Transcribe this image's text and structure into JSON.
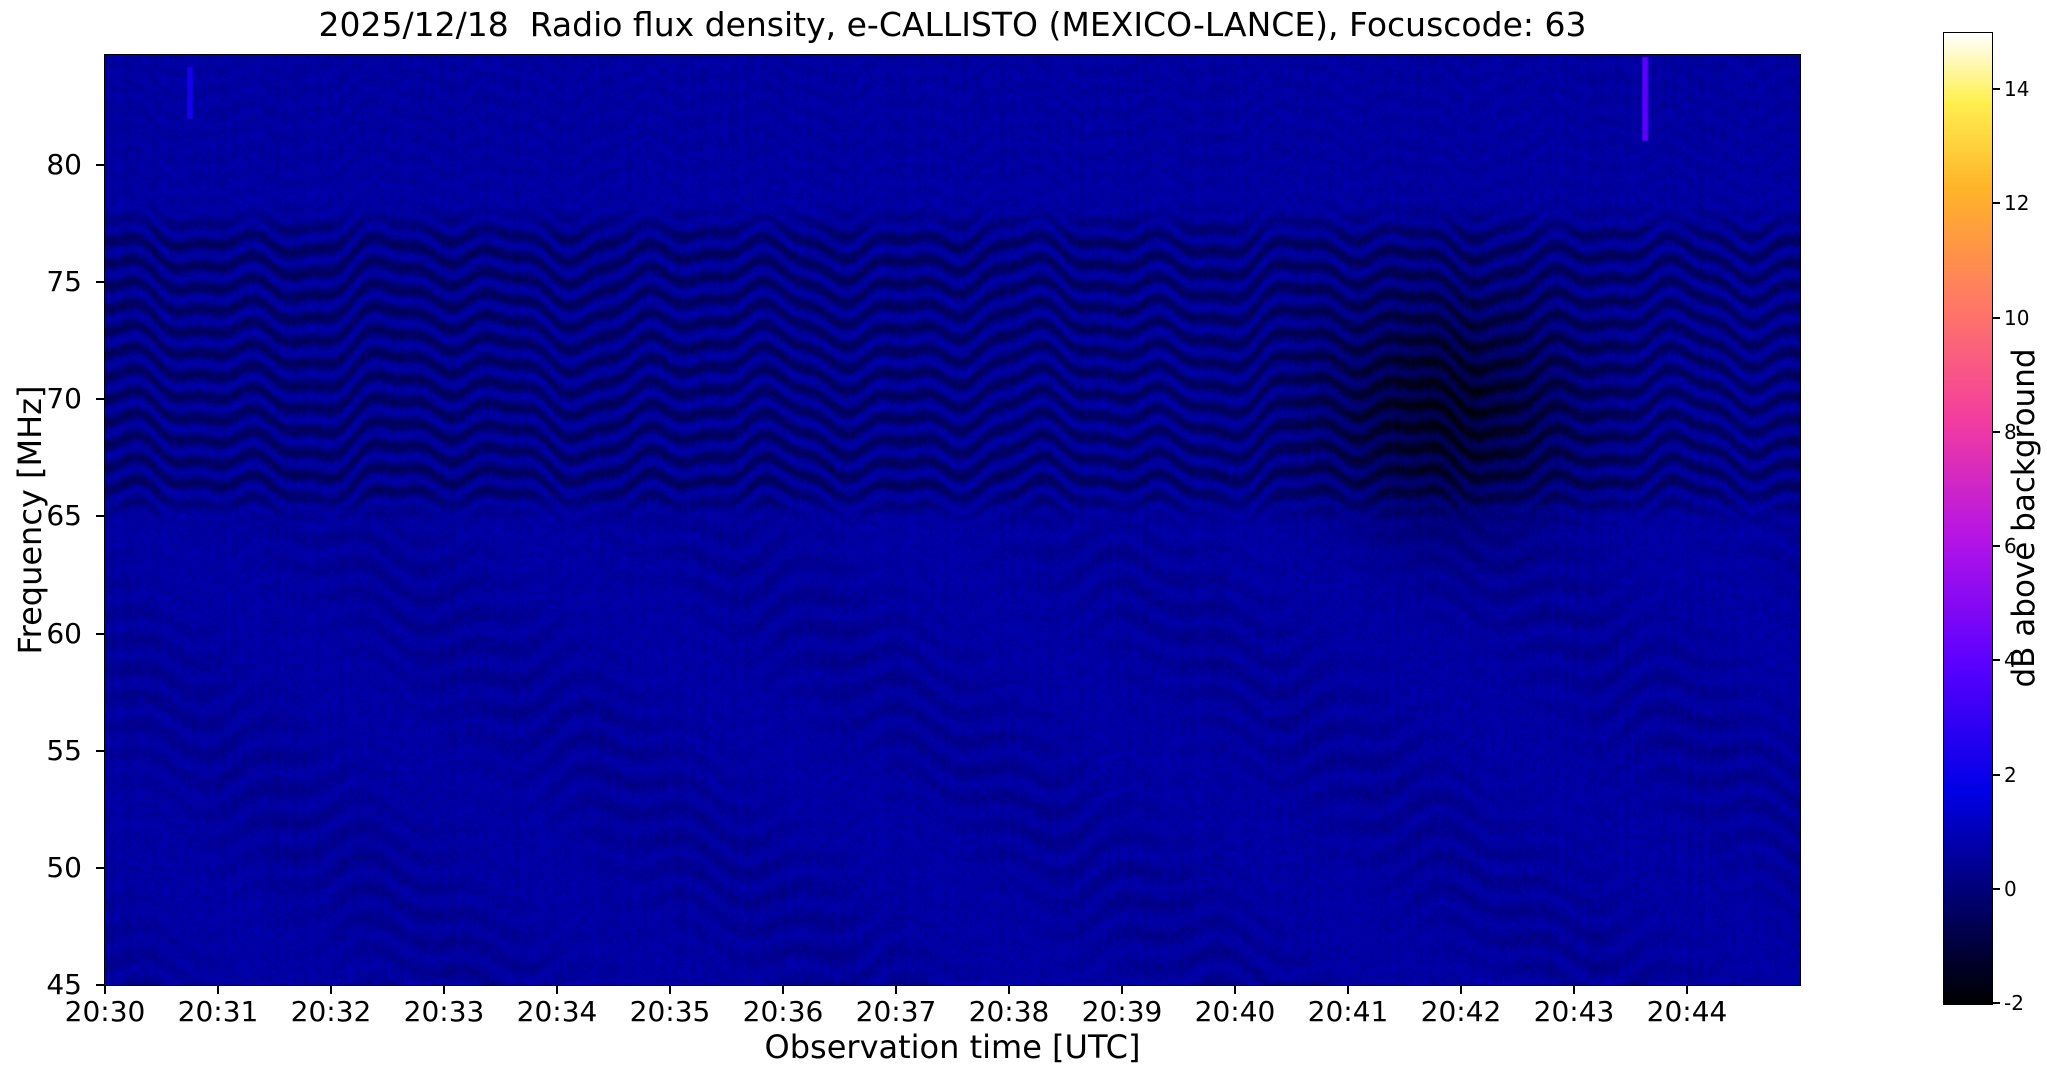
{
  "chart_data": {
    "type": "heatmap",
    "title": "2025/12/18  Radio flux density, e-CALLISTO (MEXICO-LANCE), Focuscode: 63",
    "xlabel": "Observation time [UTC]",
    "ylabel": "Frequency [MHz]",
    "colorbar_label": "dB above background",
    "x_ticks": [
      "20:30",
      "20:31",
      "20:32",
      "20:33",
      "20:34",
      "20:35",
      "20:36",
      "20:37",
      "20:38",
      "20:39",
      "20:40",
      "20:41",
      "20:42",
      "20:43",
      "20:44"
    ],
    "y_ticks": [
      "45",
      "50",
      "55",
      "60",
      "65",
      "70",
      "75",
      "80"
    ],
    "y_tick_values": [
      45,
      50,
      55,
      60,
      65,
      70,
      75,
      80
    ],
    "colorbar_ticks": [
      "-2",
      "0",
      "2",
      "4",
      "6",
      "8",
      "10",
      "12",
      "14"
    ],
    "colorbar_tick_values": [
      -2,
      0,
      2,
      4,
      6,
      8,
      10,
      12,
      14
    ],
    "x_range_minutes": [
      0,
      15
    ],
    "time_start": "20:30",
    "freq_range_mhz": [
      45,
      84.7
    ],
    "value_range_db": [
      -2,
      15
    ],
    "grid": false,
    "legend_position": "colorbar-right",
    "colormap": "gnuplot2-like",
    "colormap_stops": [
      {
        "p": 0.0,
        "color": "#000000"
      },
      {
        "p": 0.1,
        "color": "#000066"
      },
      {
        "p": 0.22,
        "color": "#0000e6"
      },
      {
        "p": 0.35,
        "color": "#5a00ff"
      },
      {
        "p": 0.48,
        "color": "#b414e6"
      },
      {
        "p": 0.6,
        "color": "#f23ca0"
      },
      {
        "p": 0.72,
        "color": "#ff7864"
      },
      {
        "p": 0.84,
        "color": "#ffb428"
      },
      {
        "p": 0.93,
        "color": "#fff050"
      },
      {
        "p": 1.0,
        "color": "#ffffff"
      }
    ],
    "background_level_db": 0.7,
    "features": {
      "interference_band": {
        "freq_min_mhz": 65.4,
        "freq_max_mhz": 77.6,
        "stripe_spacing_mhz": 0.95,
        "stripe_depth_db": 1.15,
        "wobble_periods_min": [
          2.7,
          1.15,
          0.5
        ],
        "wobble_amps_mhz": [
          0.5,
          0.45,
          0.18
        ]
      },
      "weak_low_ripples": {
        "freq_min_mhz": 45,
        "freq_max_mhz": 64.8,
        "stripe_spacing_mhz": 1.3,
        "depth_db": 0.42
      },
      "faint_top_ripples": {
        "freq_min_mhz": 78.5,
        "freq_max_mhz": 84.7,
        "depth_db": 0.15
      },
      "dark_patch": {
        "time_min": 11.9,
        "freq_mhz": 69.5,
        "sigma_time_min": 0.75,
        "sigma_freq_mhz": 3.4,
        "depth_db": 1.35
      },
      "bright_streaks": [
        {
          "time_min": 13.63,
          "freq_min_mhz": 81.0,
          "freq_max_mhz": 84.6,
          "level_db": 4.0
        },
        {
          "time_min": 0.75,
          "freq_min_mhz": 82.0,
          "freq_max_mhz": 84.2,
          "level_db": 2.2
        }
      ]
    }
  }
}
